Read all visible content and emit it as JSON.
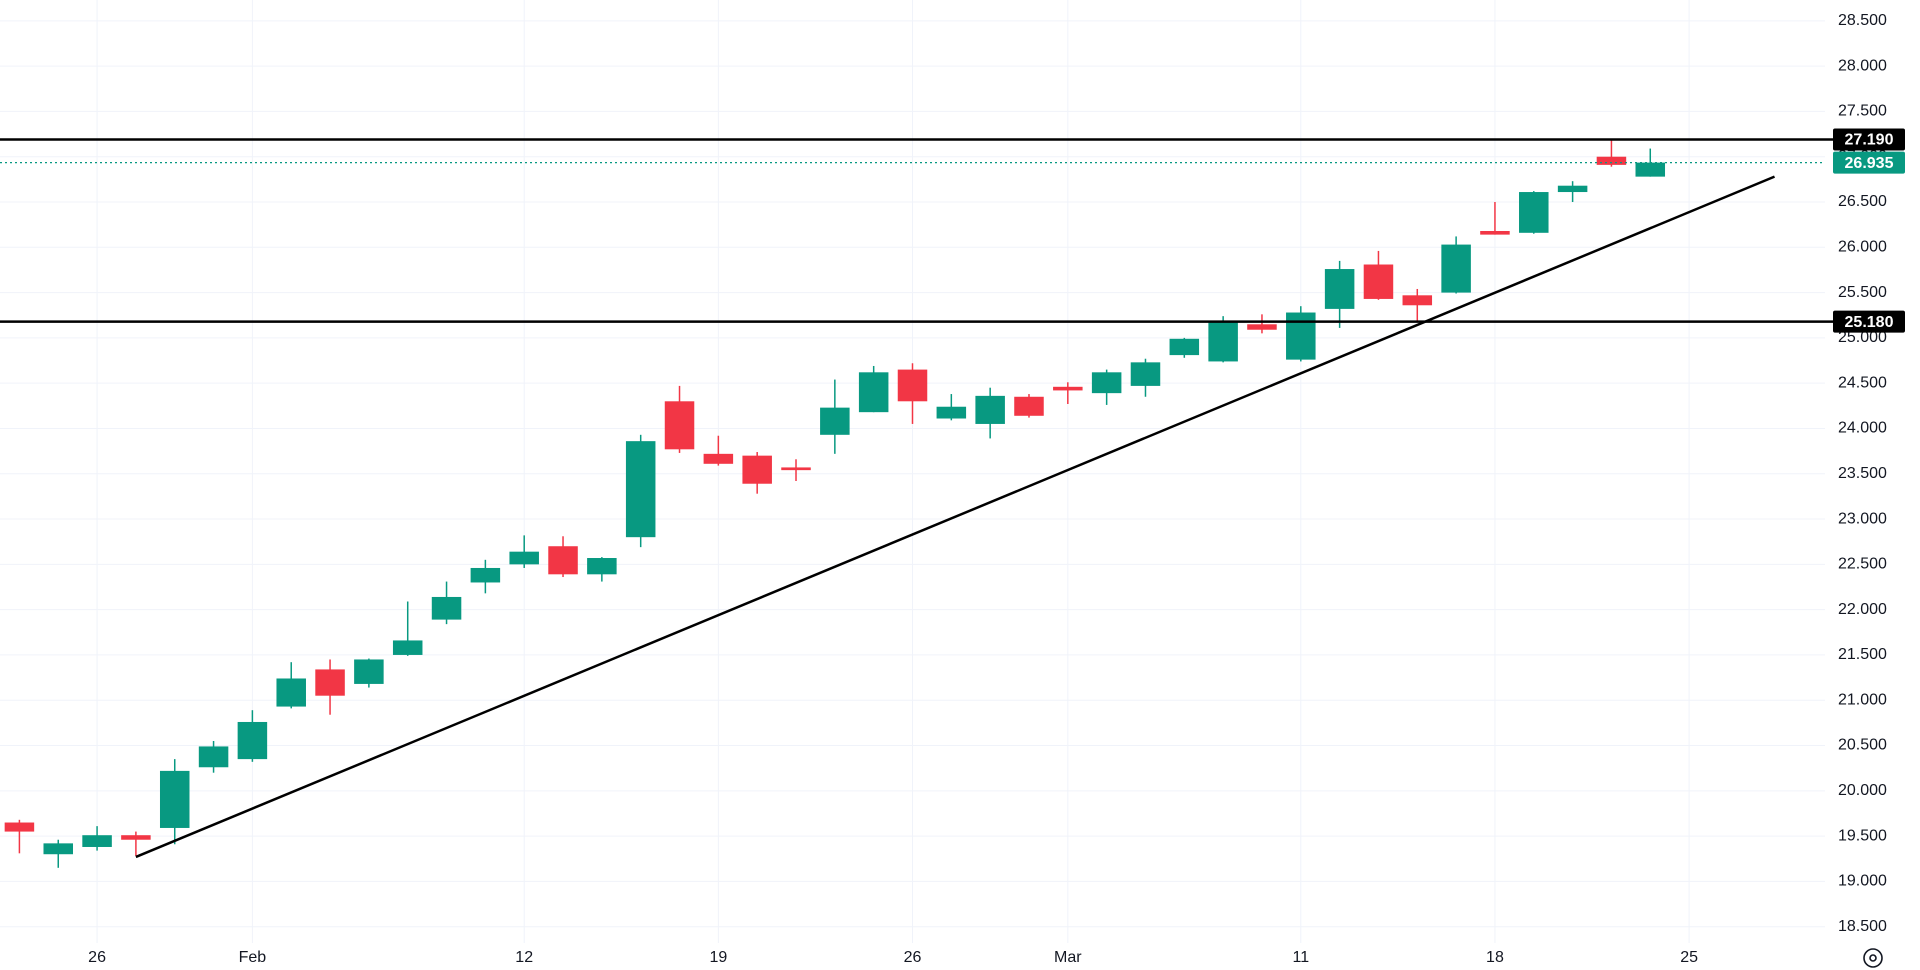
{
  "chart_data": {
    "type": "candlestick",
    "categories": [
      null,
      null,
      "26",
      null,
      null,
      null,
      "Feb",
      null,
      null,
      null,
      null,
      null,
      null,
      "12",
      null,
      null,
      null,
      null,
      "19",
      null,
      null,
      null,
      null,
      "26",
      null,
      null,
      null,
      "Mar",
      null,
      null,
      null,
      null,
      null,
      "11",
      null,
      null,
      null,
      null,
      "18",
      null,
      null,
      null,
      null,
      "25",
      null,
      null,
      null
    ],
    "open": [
      19.65,
      19.3,
      19.38,
      19.51,
      19.59,
      20.26,
      20.35,
      20.93,
      21.34,
      21.18,
      21.5,
      21.89,
      22.3,
      22.5,
      22.7,
      22.39,
      22.8,
      24.3,
      23.72,
      23.7,
      23.57,
      23.93,
      24.18,
      24.65,
      24.11,
      24.05,
      24.35,
      24.46,
      24.39,
      24.47,
      24.81,
      24.74,
      25.15,
      24.76,
      25.32,
      25.81,
      25.47,
      25.5,
      26.18,
      26.16,
      26.61,
      27.0,
      26.78,
      null,
      null,
      null,
      null
    ],
    "high": [
      19.68,
      19.46,
      19.61,
      19.55,
      20.35,
      20.55,
      20.89,
      21.42,
      21.45,
      21.46,
      22.09,
      22.31,
      22.55,
      22.82,
      22.81,
      22.58,
      23.93,
      24.47,
      23.92,
      23.74,
      23.66,
      24.54,
      24.69,
      24.72,
      24.38,
      24.45,
      24.38,
      24.51,
      24.65,
      24.77,
      25.0,
      25.24,
      25.26,
      25.35,
      25.85,
      25.96,
      25.54,
      26.12,
      26.5,
      26.62,
      26.73,
      27.2,
      27.09,
      null,
      null,
      null,
      null
    ],
    "low": [
      19.31,
      19.15,
      19.34,
      19.28,
      19.41,
      20.2,
      20.32,
      20.91,
      20.84,
      21.14,
      21.49,
      21.84,
      22.18,
      22.46,
      22.36,
      22.31,
      22.69,
      23.73,
      23.59,
      23.28,
      23.42,
      23.72,
      24.18,
      24.05,
      24.09,
      23.89,
      24.12,
      24.27,
      24.26,
      24.35,
      24.78,
      24.73,
      25.05,
      24.74,
      25.11,
      25.42,
      25.19,
      25.49,
      26.14,
      26.15,
      26.5,
      26.89,
      26.78,
      null,
      null,
      null,
      null
    ],
    "close": [
      19.55,
      19.42,
      19.51,
      19.46,
      20.22,
      20.49,
      20.76,
      21.24,
      21.05,
      21.45,
      21.66,
      22.14,
      22.46,
      22.64,
      22.39,
      22.57,
      23.86,
      23.77,
      23.61,
      23.39,
      23.54,
      24.23,
      24.62,
      24.3,
      24.24,
      24.36,
      24.14,
      24.42,
      24.62,
      24.73,
      24.99,
      25.18,
      25.09,
      25.28,
      25.76,
      25.43,
      25.36,
      26.03,
      26.14,
      26.61,
      26.68,
      26.91,
      26.935,
      null,
      null,
      null,
      null
    ],
    "up_color": "#089981",
    "down_color": "#f23645",
    "ylim": [
      18.32,
      28.73
    ],
    "yticks": [
      {
        "value": 18.5,
        "label": "18.500"
      },
      {
        "value": 19,
        "label": "19.000"
      },
      {
        "value": 19.5,
        "label": "19.500"
      },
      {
        "value": 20,
        "label": "20.000"
      },
      {
        "value": 20.5,
        "label": "20.500"
      },
      {
        "value": 21,
        "label": "21.000"
      },
      {
        "value": 21.5,
        "label": "21.500"
      },
      {
        "value": 22,
        "label": "22.000"
      },
      {
        "value": 22.5,
        "label": "22.500"
      },
      {
        "value": 23,
        "label": "23.000"
      },
      {
        "value": 23.5,
        "label": "23.500"
      },
      {
        "value": 24,
        "label": "24.000"
      },
      {
        "value": 24.5,
        "label": "24.500"
      },
      {
        "value": 25,
        "label": "25.000"
      },
      {
        "value": 25.5,
        "label": "25.500"
      },
      {
        "value": 26,
        "label": "26.000"
      },
      {
        "value": 26.5,
        "label": "26.500"
      },
      {
        "value": 27,
        "label": "27.000"
      },
      {
        "value": 27.5,
        "label": "27.500"
      },
      {
        "value": 28,
        "label": "28.000"
      },
      {
        "value": 28.5,
        "label": "28.500"
      }
    ],
    "grid": true,
    "hlines": [
      {
        "value": 27.19,
        "label": "27.190",
        "color": "#000000"
      },
      {
        "value": 25.18,
        "label": "25.180",
        "color": "#000000"
      }
    ],
    "last_price": {
      "value": 26.935,
      "label": "26.935",
      "color": "#089981"
    },
    "trendline": {
      "x": [
        3,
        45.2
      ],
      "y": [
        19.27,
        26.78
      ],
      "color": "#000000"
    }
  }
}
